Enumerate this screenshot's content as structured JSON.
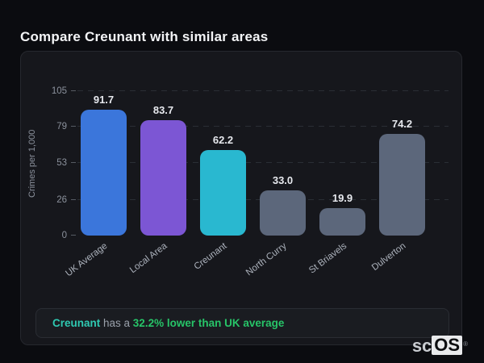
{
  "page": {
    "title": "Compare Creunant with similar areas"
  },
  "chart_data": {
    "type": "bar",
    "title": "Compare Creunant with similar areas",
    "categories": [
      "UK Average",
      "Local Area",
      "Creunant",
      "North Curry",
      "St Briavels",
      "Dulverton"
    ],
    "values": [
      91.7,
      83.7,
      62.2,
      33.0,
      19.9,
      74.2
    ],
    "value_labels": [
      "91.7",
      "83.7",
      "62.2",
      "33.0",
      "19.9",
      "74.2"
    ],
    "bar_colors": [
      "#3b76db",
      "#7c56d4",
      "#29b8d0",
      "#5c677b",
      "#5c677b",
      "#5c677b"
    ],
    "xlabel": "",
    "ylabel": "Crimes per 1,000",
    "ylim": [
      0,
      105
    ],
    "yticks": [
      0,
      26,
      53,
      79,
      105
    ],
    "grid": "dashed horizontal gridlines",
    "legend": "none",
    "highlighted_category": "Creunant"
  },
  "note": {
    "prefix": "Creunant",
    "middle": " has a ",
    "highlight": "32.2% lower than UK average",
    "prefix_color": "#2fc9b2",
    "highlight_color": "#27c468"
  },
  "logo": {
    "prefix": "sc",
    "suffix": "OS",
    "registered": "®"
  }
}
